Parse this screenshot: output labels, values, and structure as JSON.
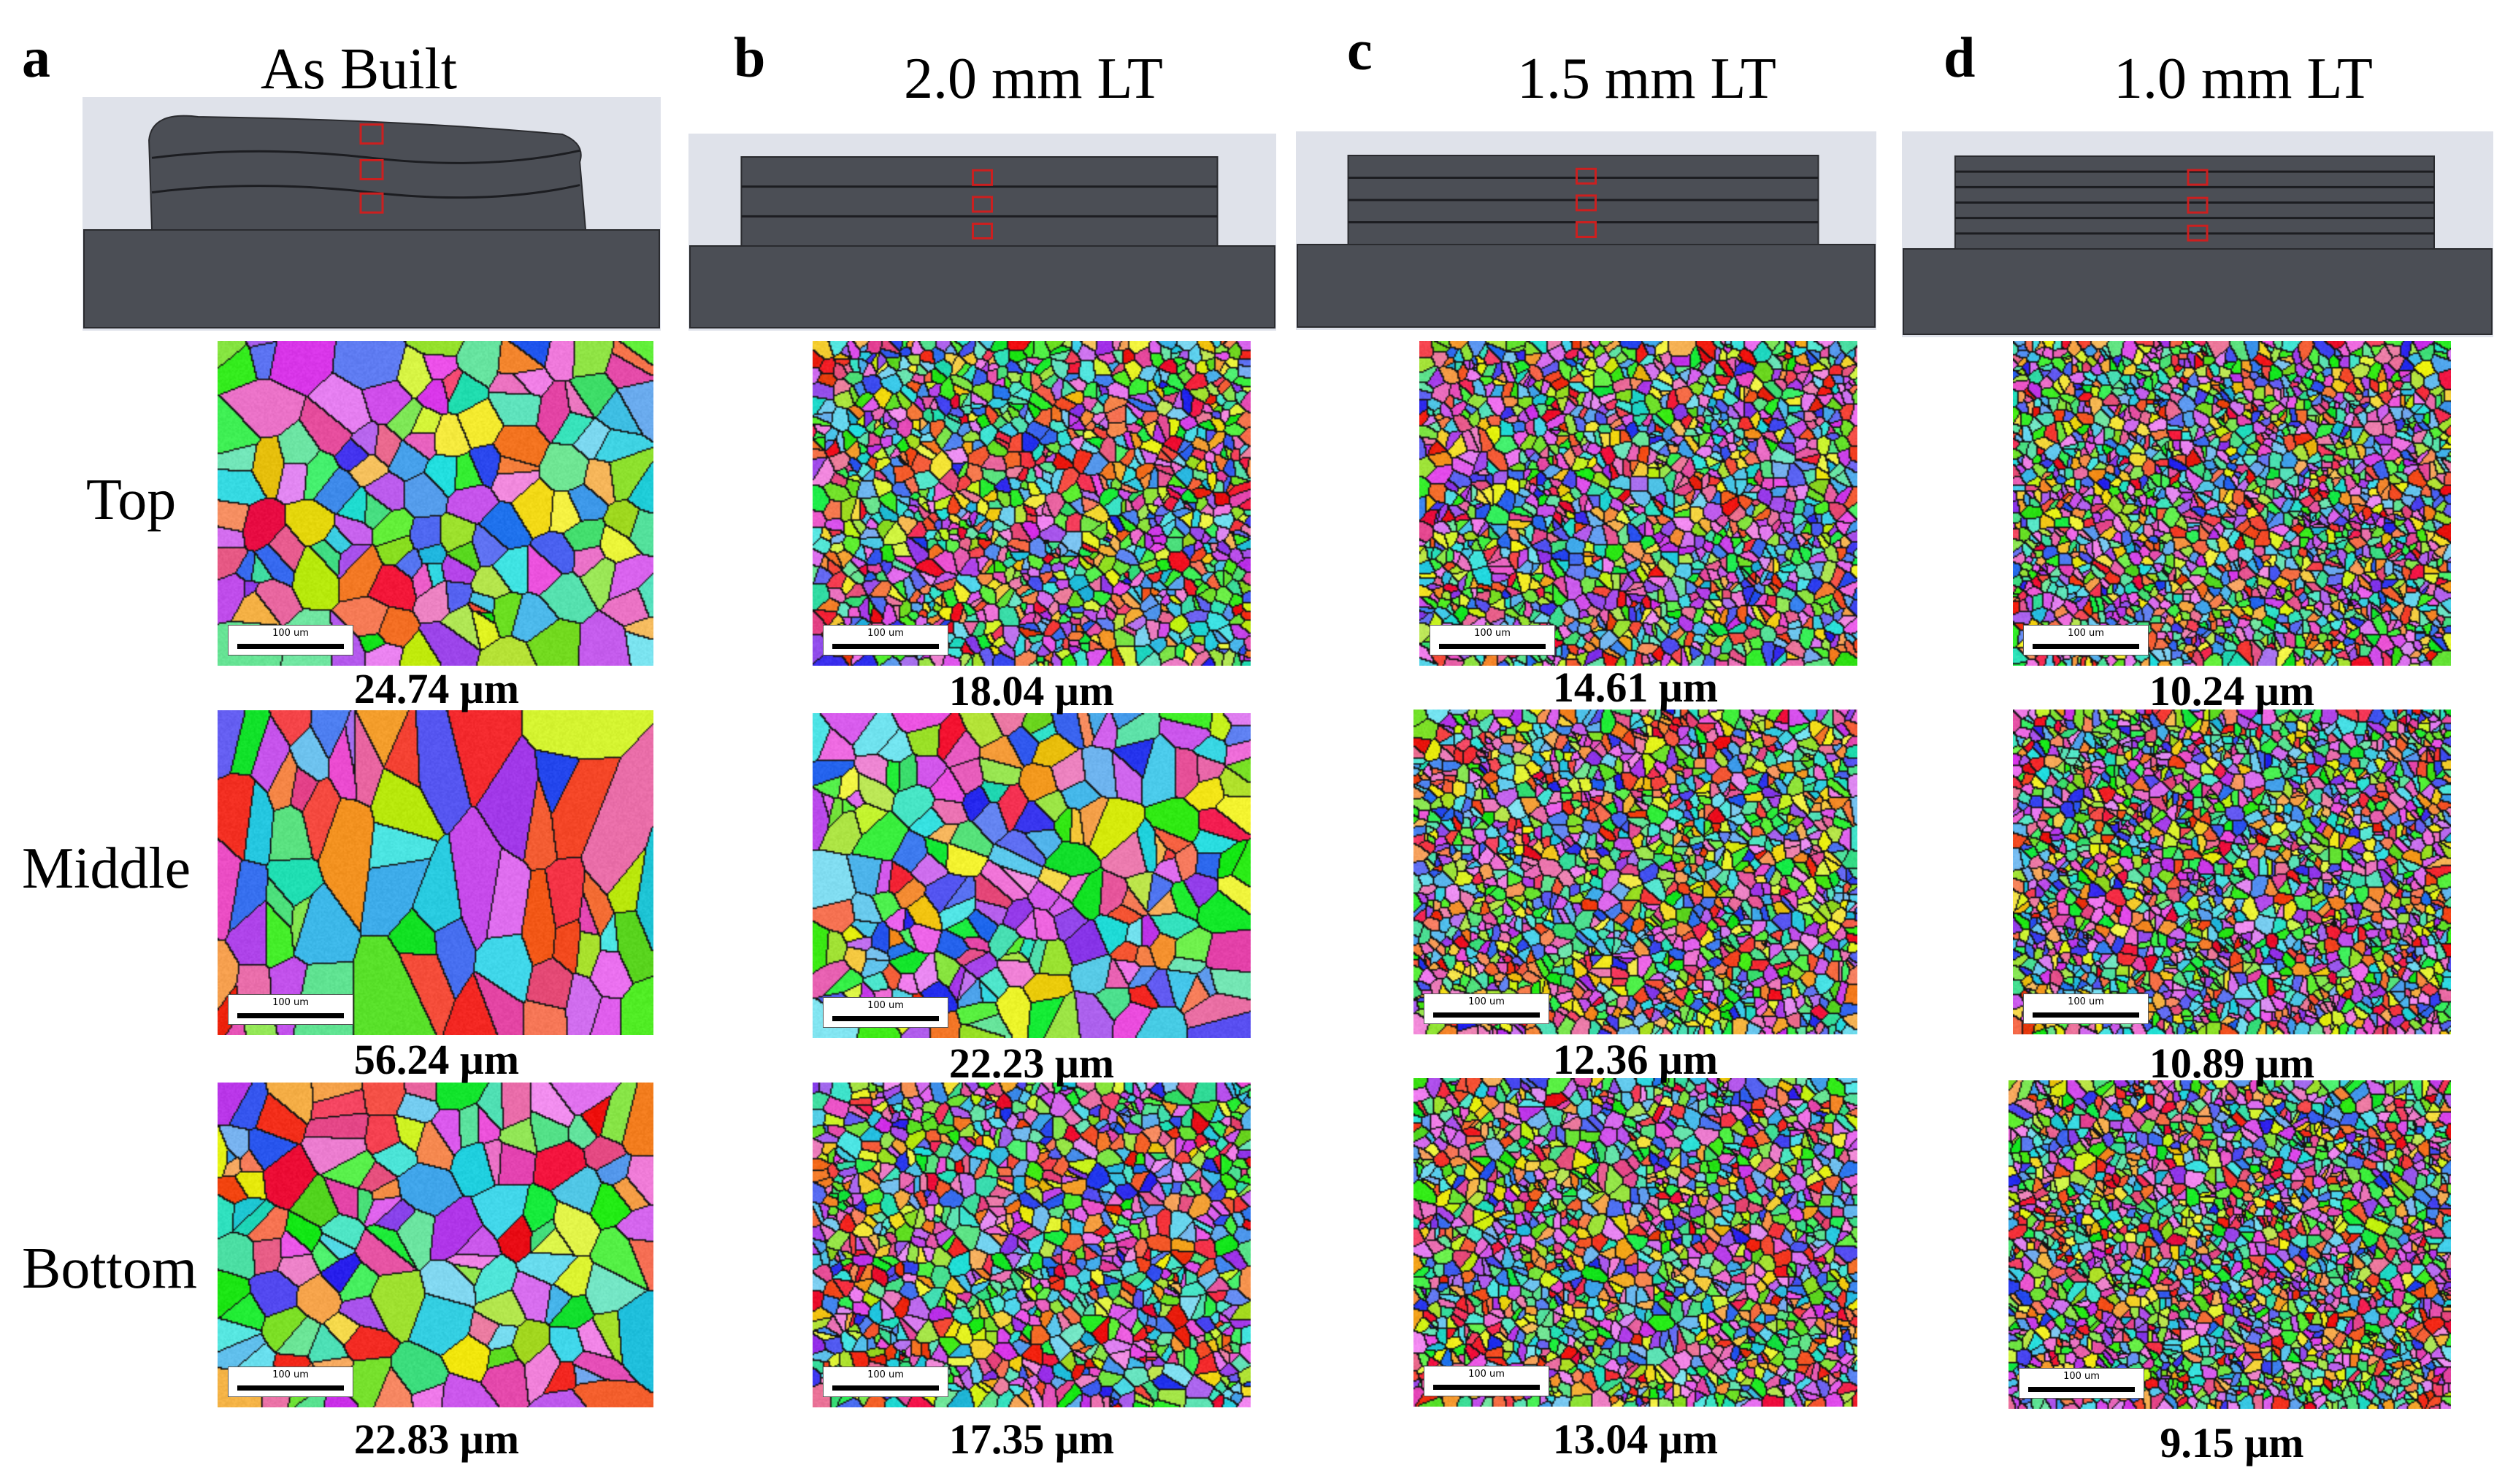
{
  "panels": [
    {
      "letter": "a",
      "title": "As Built",
      "style": "as-built",
      "layers": 3,
      "sizes": [
        "24.74 μm",
        "56.24 μm",
        "22.83 μm"
      ]
    },
    {
      "letter": "b",
      "title": "2.0 mm LT",
      "style": "layered",
      "layers": 3,
      "sizes": [
        "18.04 μm",
        "22.23 μm",
        "17.35 μm"
      ]
    },
    {
      "letter": "c",
      "title": "1.5 mm LT",
      "style": "layered",
      "layers": 4,
      "sizes": [
        "14.61 μm",
        "12.36 μm",
        "13.04 μm"
      ]
    },
    {
      "letter": "d",
      "title": "1.0 mm LT",
      "style": "layered",
      "layers": 6,
      "sizes": [
        "10.24 μm",
        "10.89 μm",
        "9.15 μm"
      ]
    }
  ],
  "rows": [
    "Top",
    "Middle",
    "Bottom"
  ],
  "scale_bar_label": "100 um",
  "colors": {
    "block": "#4b4e55",
    "block_background": "#dfe2ea",
    "layer_line": "#1c1d21",
    "marker": "#cc1f1f"
  }
}
